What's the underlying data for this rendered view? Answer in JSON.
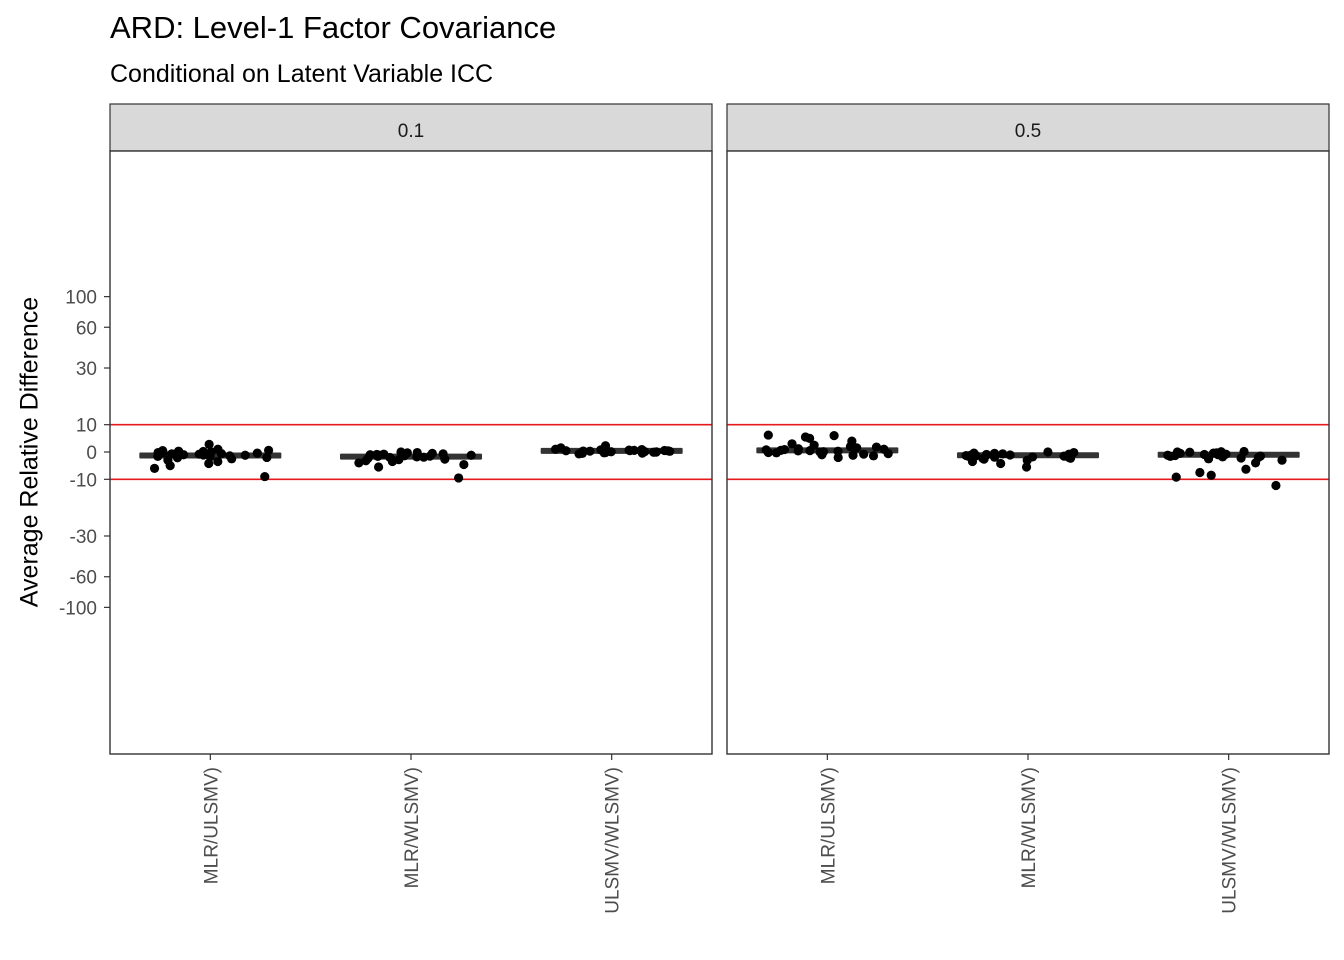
{
  "chart_data": {
    "type": "scatter",
    "title": "ARD: Level-1 Factor Covariance",
    "subtitle": "Conditional on Latent Variable ICC",
    "xlabel": "",
    "ylabel": "Average Relative Difference",
    "y_ticks": [
      -100,
      -60,
      -30,
      -10,
      0,
      10,
      30,
      60,
      100
    ],
    "ylim": [
      -110,
      110
    ],
    "reference_lines": [
      10,
      -10
    ],
    "reference_line_color": "#e41a1c",
    "grid": false,
    "panels": [
      {
        "label": "0.1",
        "categories": [
          "MLR/ULSMV)",
          "MLR/WLSMV)",
          "ULSMV/WLSMV)"
        ],
        "medians": [
          -1.3,
          -1.7,
          0.4
        ],
        "points": [
          {
            "category": "MLR/ULSMV)",
            "y": [
              2.8,
              1.0,
              0.5,
              0.3,
              0.2,
              0.0,
              -0.2,
              -0.4,
              -0.6,
              -0.8,
              -1.0,
              -1.2,
              -1.4,
              -1.6,
              -1.8,
              -2.1,
              -2.5,
              -3.0,
              -3.5,
              -4.2,
              -5.0,
              -6.0,
              -9.0,
              0.6,
              -0.3,
              -1.1,
              -2.0,
              -0.7
            ]
          },
          {
            "category": "MLR/WLSMV)",
            "y": [
              0.0,
              -0.2,
              -0.5,
              -0.8,
              -1.0,
              -1.2,
              -1.4,
              -1.6,
              -1.8,
              -2.0,
              -2.3,
              -2.6,
              -3.0,
              -3.5,
              -4.0,
              -4.6,
              -5.5,
              -9.5,
              -0.3,
              -1.1,
              -1.9,
              -2.8,
              -0.7,
              -1.5,
              -3.2,
              -0.9
            ]
          },
          {
            "category": "ULSMV/WLSMV)",
            "y": [
              2.3,
              1.5,
              1.0,
              0.8,
              0.6,
              0.5,
              0.4,
              0.3,
              0.2,
              0.1,
              0.0,
              -0.1,
              -0.2,
              -0.3,
              -0.5,
              -0.7,
              0.9,
              0.45,
              0.35,
              0.15,
              -0.05,
              0.25,
              0.55,
              0.05,
              -0.4,
              0.7
            ]
          }
        ]
      },
      {
        "label": "0.5",
        "categories": [
          "MLR/ULSMV)",
          "MLR/WLSMV)",
          "ULSMV/WLSMV)"
        ],
        "medians": [
          0.6,
          -1.2,
          -1.0
        ],
        "points": [
          {
            "category": "MLR/ULSMV)",
            "y": [
              6.0,
              6.2,
              5.5,
              5.0,
              3.0,
              2.5,
              2.0,
              1.5,
              1.2,
              1.0,
              0.8,
              0.5,
              0.3,
              0.0,
              -0.3,
              -0.6,
              -1.0,
              -1.4,
              -2.0,
              0.1,
              0.6,
              -0.8,
              1.8,
              0.4,
              -0.2,
              0.9,
              -1.2,
              4.0
            ]
          },
          {
            "category": "MLR/WLSMV)",
            "y": [
              0.0,
              -0.2,
              -0.5,
              -0.8,
              -1.0,
              -1.2,
              -1.4,
              -1.6,
              -1.8,
              -2.0,
              -2.3,
              -2.6,
              -3.0,
              -3.5,
              -4.2,
              -5.5,
              -0.4,
              -1.1,
              -1.9,
              -0.7,
              -1.5,
              -2.4,
              -0.9,
              -1.3
            ]
          },
          {
            "category": "ULSMV/WLSMV)",
            "y": [
              0.2,
              0.0,
              -0.3,
              -0.5,
              -0.8,
              -1.0,
              -1.2,
              -1.5,
              -1.8,
              -2.0,
              -2.5,
              -3.0,
              -4.0,
              -6.3,
              -7.5,
              -8.5,
              -9.2,
              -11.5,
              -0.6,
              -1.3,
              -0.1,
              -0.9,
              -1.6,
              -2.2,
              0.1,
              -0.4
            ]
          }
        ]
      }
    ]
  }
}
